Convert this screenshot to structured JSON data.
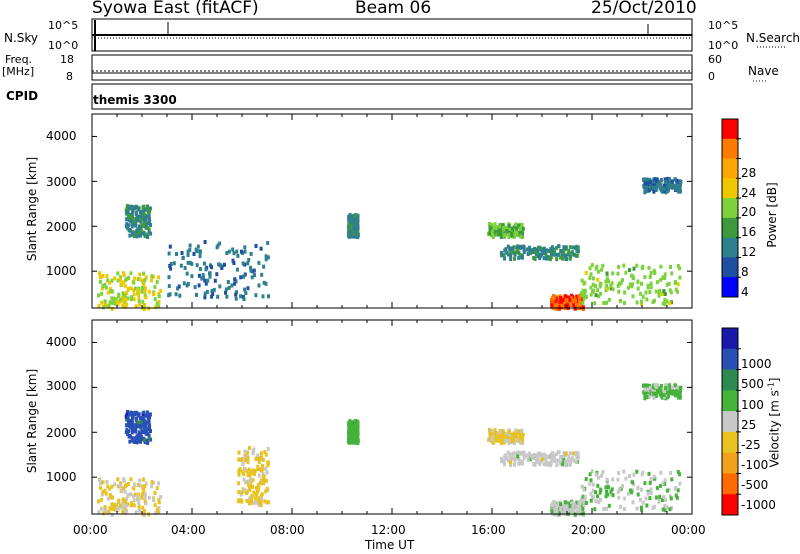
{
  "header": {
    "station": "Syowa East (fitACF)",
    "beam": "Beam 06",
    "date": "25/Oct/2010"
  },
  "top_panels": {
    "nsky_label": "N.Sky",
    "nsearch_label": "N.Search",
    "nsky_ticks": [
      "10^5",
      "10^0"
    ],
    "nsearch_ticks": [
      "10^5",
      "10^0"
    ],
    "freq_label": "Freq.",
    "freq_unit": "[MHz]",
    "freq_ticks": [
      "18",
      "8"
    ],
    "nave_label": "Nave",
    "nave_ticks": [
      "60",
      "0"
    ],
    "cpid_label": "CPID",
    "cpid_value": "themis 3300"
  },
  "axes": {
    "y_label": "Slant Range [km]",
    "y_ticks": [
      "4000",
      "3000",
      "2000",
      "1000"
    ],
    "x_ticks": [
      "00:00",
      "04:00",
      "08:00",
      "12:00",
      "16:00",
      "20:00",
      "00:00"
    ],
    "x_label": "Time UT"
  },
  "power_colorbar": {
    "label": "Power [dB]",
    "ticks": [
      "28",
      "24",
      "20",
      "16",
      "12",
      "8",
      "4"
    ],
    "colors": [
      "#ff0000",
      "#ff7a00",
      "#ffa500",
      "#f0c800",
      "#7cd23c",
      "#3c9a3c",
      "#2f7f8f",
      "#1e4fa0",
      "#0000ff"
    ]
  },
  "velocity_colorbar": {
    "label": "Velocity [m s",
    "label_sup": "-1",
    "label_close": "]",
    "ticks": [
      "1000",
      "500",
      "100",
      "25",
      "-25",
      "-100",
      "-500",
      "-1000"
    ],
    "colors": [
      "#1a1aaa",
      "#2850b4",
      "#2e8a4e",
      "#45b23a",
      "#c8c8c8",
      "#e8c21e",
      "#f2a21a",
      "#ff6a00",
      "#ff0000"
    ]
  },
  "chart_data": [
    {
      "type": "heatmap",
      "title": "Power [dB]",
      "xlabel": "Time UT",
      "ylabel": "Slant Range [km]",
      "xlim": [
        0,
        24
      ],
      "ylim": [
        180,
        4500
      ],
      "x_unit": "hours UT",
      "scatter_regions": [
        {
          "x": [
            0.2,
            2.7
          ],
          "y": [
            200,
            1000
          ],
          "value": 18
        },
        {
          "x": [
            1.3,
            2.3
          ],
          "y": [
            1800,
            2500
          ],
          "value": 10
        },
        {
          "x": [
            3.0,
            7.0
          ],
          "y": [
            400,
            1700
          ],
          "value": 8
        },
        {
          "x": [
            10.2,
            10.6
          ],
          "y": [
            1800,
            2300
          ],
          "value": 10
        },
        {
          "x": [
            15.8,
            17.2
          ],
          "y": [
            1800,
            2100
          ],
          "value": 14
        },
        {
          "x": [
            16.3,
            19.4
          ],
          "y": [
            1300,
            1600
          ],
          "value": 10
        },
        {
          "x": [
            18.3,
            19.6
          ],
          "y": [
            200,
            500
          ],
          "value": 28
        },
        {
          "x": [
            19.5,
            23.5
          ],
          "y": [
            300,
            1200
          ],
          "value": 16
        },
        {
          "x": [
            22.0,
            23.5
          ],
          "y": [
            2800,
            3100
          ],
          "value": 8
        }
      ]
    },
    {
      "type": "heatmap",
      "title": "Velocity [m s-1]",
      "xlabel": "Time UT",
      "ylabel": "Slant Range [km]",
      "xlim": [
        0,
        24
      ],
      "ylim": [
        180,
        4500
      ],
      "x_unit": "hours UT",
      "scatter_regions": [
        {
          "x": [
            0.2,
            2.7
          ],
          "y": [
            200,
            1000
          ],
          "value": -150
        },
        {
          "x": [
            1.3,
            2.3
          ],
          "y": [
            1800,
            2500
          ],
          "value": 800
        },
        {
          "x": [
            5.8,
            7.0
          ],
          "y": [
            400,
            1700
          ],
          "value": -200
        },
        {
          "x": [
            10.2,
            10.6
          ],
          "y": [
            1800,
            2300
          ],
          "value": 300
        },
        {
          "x": [
            15.8,
            17.2
          ],
          "y": [
            1800,
            2100
          ],
          "value": -200
        },
        {
          "x": [
            16.3,
            19.4
          ],
          "y": [
            1300,
            1600
          ],
          "value": 0
        },
        {
          "x": [
            18.3,
            19.6
          ],
          "y": [
            200,
            500
          ],
          "value": 50
        },
        {
          "x": [
            19.5,
            23.5
          ],
          "y": [
            300,
            1200
          ],
          "value": 100
        },
        {
          "x": [
            22.0,
            23.5
          ],
          "y": [
            2800,
            3100
          ],
          "value": 200
        }
      ]
    }
  ]
}
